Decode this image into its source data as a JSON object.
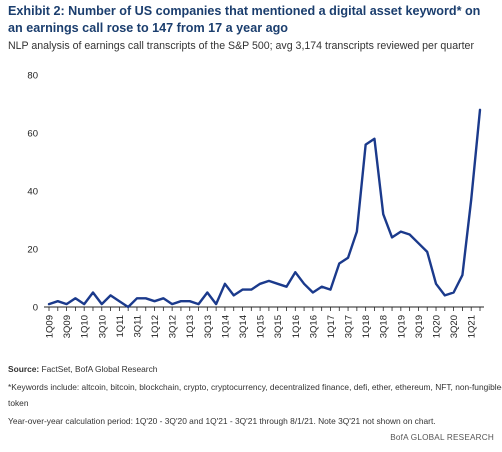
{
  "title": "Exhibit 2: Number of US companies that mentioned a digital asset keyword* on an earnings call rose to 147 from 17 a year ago",
  "subtitle": "NLP analysis of earnings call transcripts of the S&P 500; avg 3,174 transcripts reviewed per quarter",
  "source_label": "Source:",
  "source_text": " FactSet, BofA Global Research",
  "footnote_1": "*Keywords include: altcoin, bitcoin, blockchain, crypto, cryptocurrency, decentralized finance, defi, ether, ethereum, NFT, non-fungible-",
  "footnote_2": "token",
  "footnote_3": "Year-over-year calculation period: 1Q'20 - 3Q'20 and 1Q'21 - 3Q'21 through 8/1/21. Note 3Q'21 not shown on chart.",
  "brand": "BofA GLOBAL RESEARCH",
  "colors": {
    "line": "#1b3a8c",
    "title": "#1b3e6e"
  },
  "chart_data": {
    "type": "line",
    "title": "",
    "xlabel": "",
    "ylabel": "",
    "ylim": [
      0,
      80
    ],
    "yticks": [
      0,
      20,
      40,
      60,
      80
    ],
    "grid": false,
    "x": [
      "1Q09",
      "2Q09",
      "3Q09",
      "4Q09",
      "1Q10",
      "2Q10",
      "3Q10",
      "4Q10",
      "1Q11",
      "2Q11",
      "3Q11",
      "4Q11",
      "1Q12",
      "2Q12",
      "3Q12",
      "4Q12",
      "1Q13",
      "2Q13",
      "3Q13",
      "4Q13",
      "1Q14",
      "2Q14",
      "3Q14",
      "4Q14",
      "1Q15",
      "2Q15",
      "3Q15",
      "4Q15",
      "1Q16",
      "2Q16",
      "3Q16",
      "4Q16",
      "1Q17",
      "2Q17",
      "3Q17",
      "4Q17",
      "1Q18",
      "2Q18",
      "3Q18",
      "4Q18",
      "1Q19",
      "2Q19",
      "3Q19",
      "4Q19",
      "1Q20",
      "2Q20",
      "3Q20",
      "4Q20",
      "1Q21",
      "2Q21"
    ],
    "xtick_labels": [
      "1Q09",
      "3Q09",
      "1Q10",
      "3Q10",
      "1Q11",
      "3Q11",
      "1Q12",
      "3Q12",
      "1Q13",
      "3Q13",
      "1Q14",
      "3Q14",
      "1Q15",
      "3Q15",
      "1Q16",
      "3Q16",
      "1Q17",
      "3Q17",
      "1Q18",
      "3Q18",
      "1Q19",
      "3Q19",
      "1Q20",
      "3Q20",
      "1Q21"
    ],
    "series": [
      {
        "values": [
          1,
          2,
          1,
          3,
          1,
          5,
          1,
          4,
          2,
          0,
          3,
          3,
          2,
          3,
          1,
          2,
          2,
          1,
          5,
          1,
          8,
          4,
          6,
          6,
          8,
          9,
          8,
          7,
          12,
          8,
          5,
          7,
          6,
          15,
          17,
          26,
          56,
          58,
          32,
          24,
          26,
          25,
          22,
          19,
          8,
          4,
          5,
          11,
          37,
          68
        ]
      }
    ]
  }
}
